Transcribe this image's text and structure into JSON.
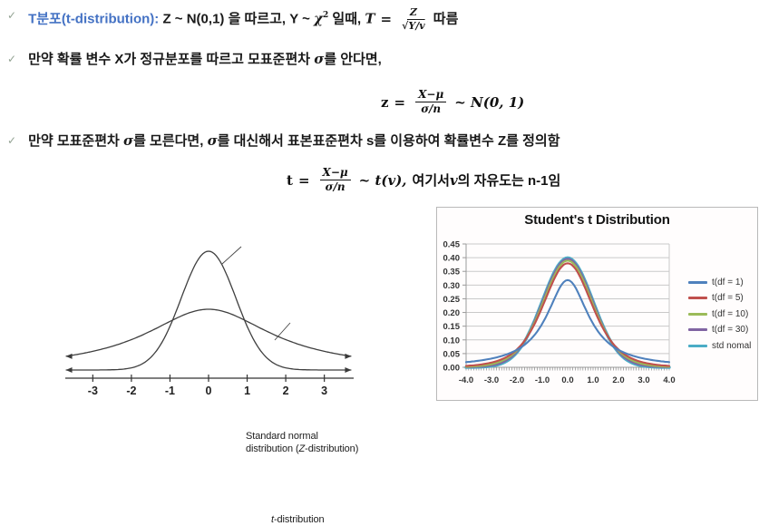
{
  "slide": {
    "bullets": [
      {
        "check": "✓",
        "highlight": "T분포(t-distribution): ",
        "seg_a": "Z ~ N(0,1) 을 따르고, Y ~ ",
        "chi": "χ",
        "chi_sup": "2",
        "seg_b": " 일때, ",
        "f_lhs": "T",
        "f_eq": "=",
        "f_num": "Z",
        "f_sqrt": "√",
        "f_den": "Y/v",
        "seg_c": " 따름"
      },
      {
        "check": "✓",
        "text_a": "만약 확률 변수 X가 정규분포를 따르고 모표준편차 ",
        "sigma": "σ",
        "text_b": "를 안다면,"
      },
      {
        "check": "✓",
        "text_a": "만약 모표준편차 ",
        "sigma1": "σ",
        "text_b": "를 모른다면, ",
        "sigma2": "σ",
        "text_c": "를 대신해서 표본표준편차 s를 이용하여 확률변수 Z를 정의함"
      }
    ],
    "formula_z": {
      "lhs": "z",
      "eq": "=",
      "num": "X−μ",
      "den": "σ/n",
      "tail": "~ N(0, 1)"
    },
    "formula_t": {
      "lhs": "t",
      "eq": "=",
      "num": "X−μ",
      "den": "σ/n",
      "tail": "~ t(v),",
      "k1": "여기서 ",
      "v": "v",
      "k2": "의 자유도는 n-1임"
    }
  },
  "left_chart_labels": {
    "normal_l1": "Standard normal",
    "normal_l2a": "distribution (",
    "normal_l2b": "Z",
    "normal_l2c": "-distribution)",
    "t_a": "t",
    "t_b": "-distribution"
  },
  "chart_data": [
    {
      "type": "line",
      "title": "",
      "description": "Illustration comparing the standard normal (Z) curve and the wider, flatter t-distribution curve; curves cross near ±1 and the t-distribution has fatter tails.",
      "x_ticks": [
        "-3",
        "-2",
        "-1",
        "0",
        "1",
        "2",
        "3"
      ],
      "xlim": [
        -3.7,
        3.7
      ],
      "series": [
        {
          "name": "Standard normal distribution (Z-distribution)",
          "shape": "normal",
          "peak_rel": 1.0
        },
        {
          "name": "t-distribution",
          "shape": "fat-tailed",
          "peak_rel": 0.51
        }
      ],
      "legend_position": "inline-labels",
      "grid": false
    },
    {
      "type": "line",
      "title": "Student's t Distribution",
      "x": {
        "min": -4,
        "max": 4,
        "tick_labels": [
          "-4.0",
          "-3.0",
          "-2.0",
          "-1.0",
          "0.0",
          "1.0",
          "2.0",
          "3.0",
          "4.0"
        ]
      },
      "y": {
        "min": 0,
        "max": 0.45,
        "tick_labels": [
          "0.00",
          "0.05",
          "0.10",
          "0.15",
          "0.20",
          "0.25",
          "0.30",
          "0.35",
          "0.40",
          "0.45"
        ]
      },
      "grid": true,
      "legend_position": "right",
      "series": [
        {
          "name": "t(df = 1)",
          "color": "#4F81BD",
          "df": 1,
          "peak": 0.3183
        },
        {
          "name": "t(df = 5)",
          "color": "#C0504D",
          "df": 5,
          "peak": 0.3796
        },
        {
          "name": "t(df = 10)",
          "color": "#9BBB59",
          "df": 10,
          "peak": 0.3891
        },
        {
          "name": "t(df = 30)",
          "color": "#8064A2",
          "df": 30,
          "peak": 0.3956
        },
        {
          "name": "std nomal",
          "color": "#4BACC6",
          "df": null,
          "distribution": "normal",
          "peak": 0.3989
        }
      ]
    }
  ]
}
